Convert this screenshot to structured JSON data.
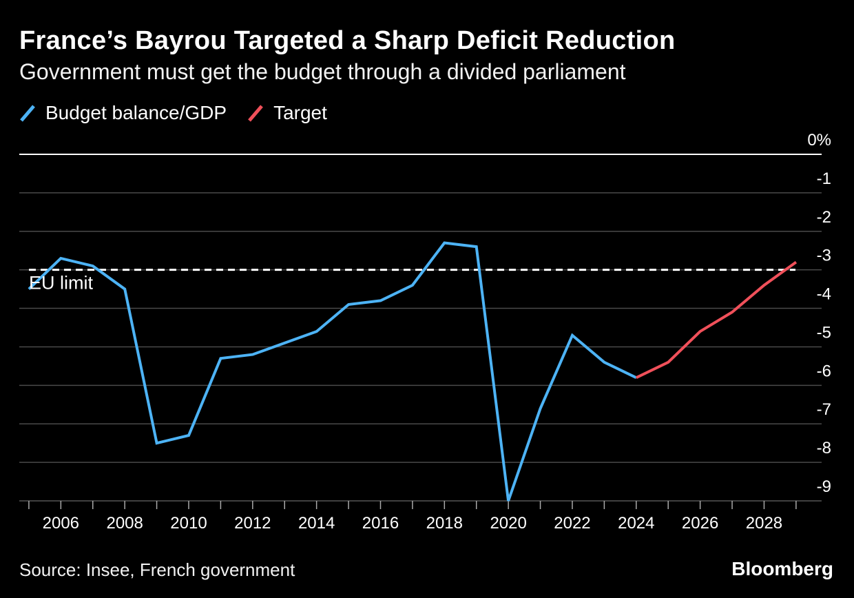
{
  "header": {
    "title": "France’s Bayrou Targeted a Sharp Deficit Reduction",
    "subtitle": "Government must get the budget through a divided parliament"
  },
  "legend": {
    "items": [
      {
        "label": "Budget balance/GDP",
        "color": "#4db3f5"
      },
      {
        "label": "Target",
        "color": "#f0505a"
      }
    ]
  },
  "footer": {
    "source": "Source: Insee, French government",
    "brand": "Bloomberg"
  },
  "chart_data": {
    "type": "line",
    "title": "France’s Bayrou Targeted a Sharp Deficit Reduction",
    "ylabel": "",
    "xlabel": "",
    "xlim": [
      2004.7,
      2029.8
    ],
    "ylim": [
      -9,
      0
    ],
    "y_ticks": [
      {
        "value": 0,
        "label": "0%"
      },
      {
        "value": -1,
        "label": "-1"
      },
      {
        "value": -2,
        "label": "-2"
      },
      {
        "value": -3,
        "label": "-3"
      },
      {
        "value": -4,
        "label": "-4"
      },
      {
        "value": -5,
        "label": "-5"
      },
      {
        "value": -6,
        "label": "-6"
      },
      {
        "value": -7,
        "label": "-7"
      },
      {
        "value": -8,
        "label": "-8"
      },
      {
        "value": -9,
        "label": "-9"
      }
    ],
    "x_tick_labels": [
      "2006",
      "2008",
      "2010",
      "2012",
      "2014",
      "2016",
      "2018",
      "2020",
      "2022",
      "2024",
      "2026",
      "2028"
    ],
    "x_minor_ticks": [
      2005,
      2006,
      2007,
      2008,
      2009,
      2010,
      2011,
      2012,
      2013,
      2014,
      2015,
      2016,
      2017,
      2018,
      2019,
      2020,
      2021,
      2022,
      2023,
      2024,
      2025,
      2026,
      2027,
      2028,
      2029
    ],
    "reference_line": {
      "value": -3,
      "label": "EU limit",
      "style": "dashed"
    },
    "series": [
      {
        "name": "Budget balance/GDP",
        "color": "#4db3f5",
        "x": [
          2005,
          2005.5,
          2006,
          2007,
          2008,
          2009,
          2010,
          2011,
          2012,
          2013,
          2014,
          2015,
          2016,
          2017,
          2018,
          2019,
          2020,
          2021,
          2022,
          2023,
          2024
        ],
        "y": [
          -3.5,
          -3.1,
          -2.7,
          -2.9,
          -3.5,
          -7.5,
          -7.3,
          -5.3,
          -5.2,
          -4.9,
          -4.6,
          -3.9,
          -3.8,
          -3.4,
          -2.3,
          -2.4,
          -9.0,
          -6.6,
          -4.7,
          -5.4,
          -5.8
        ]
      },
      {
        "name": "Target",
        "color": "#f0505a",
        "x": [
          2024,
          2025,
          2026,
          2027,
          2028,
          2029
        ],
        "y": [
          -5.8,
          -5.4,
          -4.6,
          -4.1,
          -3.4,
          -2.8
        ]
      }
    ]
  }
}
